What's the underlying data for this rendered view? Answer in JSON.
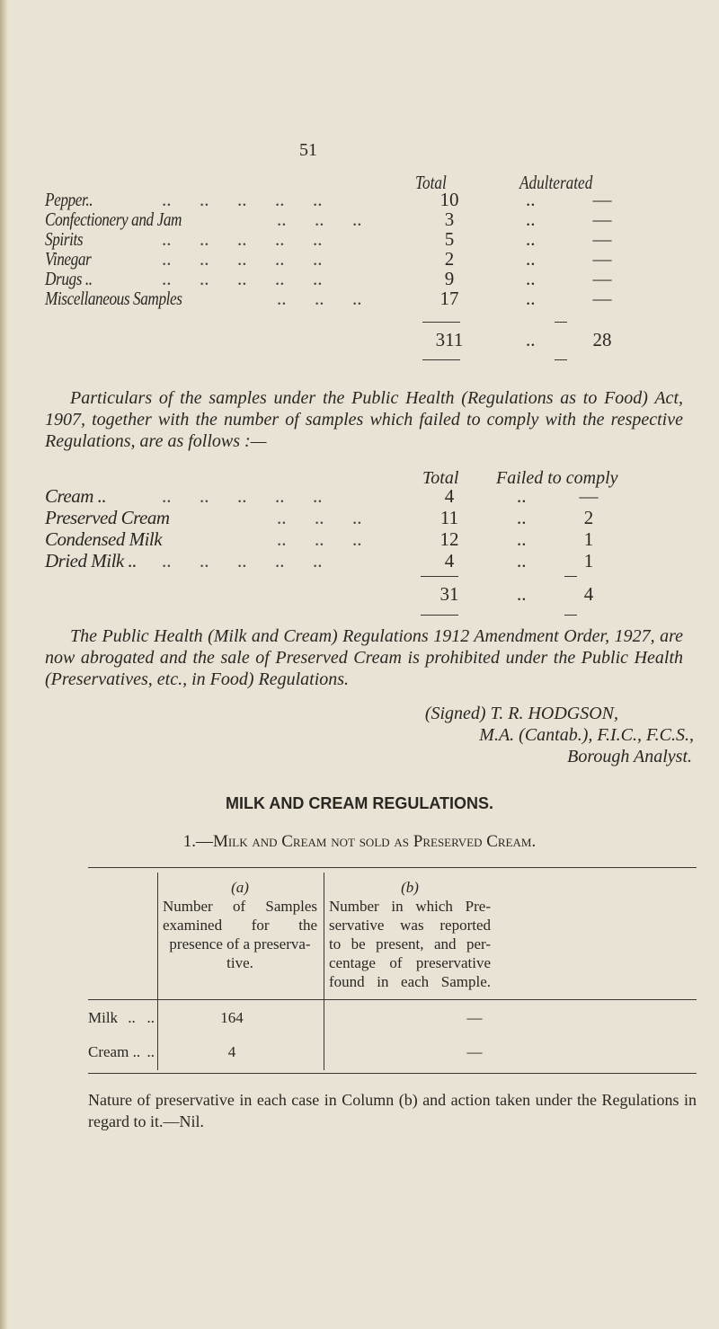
{
  "page_number": "51",
  "table1": {
    "headers": [
      "Total",
      "Adulterated"
    ],
    "rows": [
      {
        "label": "Pepper..",
        "total": "10",
        "adulterated": "—"
      },
      {
        "label": "Confectionery and Jam",
        "total": "3",
        "adulterated": "—"
      },
      {
        "label": "Spirits",
        "total": "5",
        "adulterated": "—"
      },
      {
        "label": "Vinegar",
        "total": "2",
        "adulterated": "—"
      },
      {
        "label": "Drugs ..",
        "total": "9",
        "adulterated": "—"
      },
      {
        "label": "Miscellaneous Samples",
        "total": "17",
        "adulterated": "—"
      }
    ],
    "totals": {
      "total": "311",
      "adulterated": "28"
    }
  },
  "paragraph1": "Particulars of the samples under the Public Health (Regulations as to Food) Act, 1907, together with the number of samples which failed to comply with the respective Regulations, are as follows :—",
  "table2": {
    "headers": [
      "Total",
      "Failed to comply"
    ],
    "rows": [
      {
        "label": "Cream ..",
        "total": "4",
        "failed": "—"
      },
      {
        "label": "Preserved Cream",
        "total": "11",
        "failed": "2"
      },
      {
        "label": "Condensed Milk",
        "total": "12",
        "failed": "1"
      },
      {
        "label": "Dried Milk ..",
        "total": "4",
        "failed": "1"
      }
    ],
    "totals": {
      "total": "31",
      "failed": "4"
    }
  },
  "paragraph2": "The Public Health (Milk and Cream) Regulations 1912 Amendment Order, 1927, are now abrogated and the sale of Preserved Cream is prohibited under the Public Health (Preservatives, etc., in Food) Regulations.",
  "signature": {
    "line1": "(Signed) T. R. HODGSON,",
    "line2": "M.A. (Cantab.), F.I.C., F.C.S.,",
    "line3": "Borough Analyst."
  },
  "section_heading": "MILK AND CREAM REGULATIONS.",
  "subheading": "1.—Milk and Cream not sold as Preserved Cream.",
  "table3": {
    "col_a": {
      "label": "(a)",
      "text": [
        "Number of Samples",
        "examined for the",
        "presence of a preserva-",
        "tive."
      ]
    },
    "col_b": {
      "label": "(b)",
      "text": [
        "Number in which Pre-",
        "servative was reported",
        "to be present, and per-",
        "centage of preservative",
        "found in each Sample."
      ]
    },
    "rows": [
      {
        "label": "Milk",
        "a": "164",
        "b": "—"
      },
      {
        "label": "Cream ..",
        "a": "4",
        "b": "—"
      }
    ]
  },
  "footnote": "Nature of preservative in each case in Column (b) and action taken under the Regulations in regard to it.—Nil."
}
